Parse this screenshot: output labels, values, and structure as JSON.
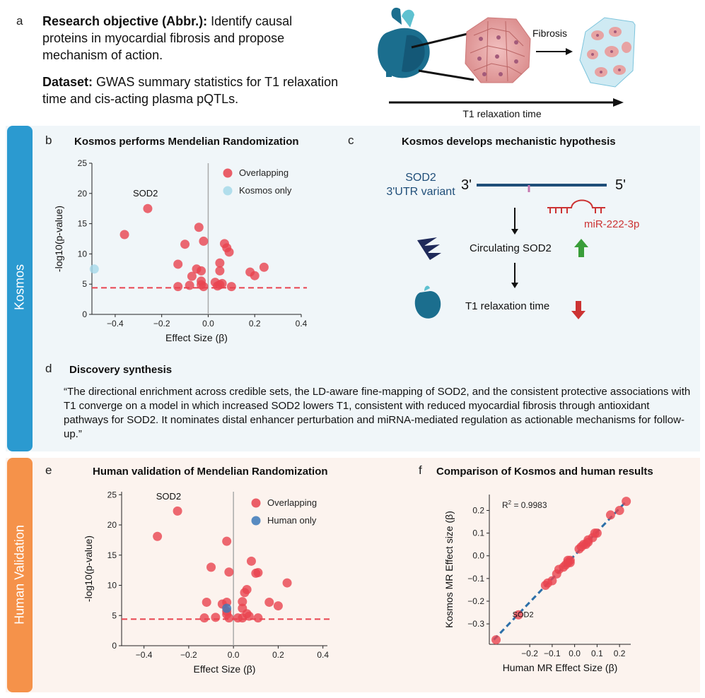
{
  "panel_a": {
    "letter": "a",
    "objective_label": "Research objective (Abbr.):",
    "objective_text": "Identify causal proteins in myocardial fibrosis and propose mechanism of action.",
    "dataset_label": "Dataset:",
    "dataset_text": "GWAS summary statistics for T1 relaxation time and cis-acting plasma pQTLs.",
    "fibrosis_label": "Fibrosis",
    "axis_label": "T1 relaxation time"
  },
  "side_labels": {
    "kosmos": "Kosmos",
    "human": "Human Validation"
  },
  "panel_b": {
    "letter": "b"
  },
  "panel_c": {
    "letter": "c",
    "title": "Kosmos develops mechanistic hypothesis",
    "variant_line1": "SOD2",
    "variant_line2": "3'UTR variant",
    "three_prime": "3'",
    "five_prime": "5'",
    "mirna": "miR-222-3p",
    "circulating": "Circulating SOD2",
    "t1": "T1 relaxation time",
    "colors": {
      "blue": "#1f4e79",
      "red": "#cc3333",
      "green": "#3a9e3a"
    }
  },
  "panel_d": {
    "letter": "d",
    "title": "Discovery synthesis",
    "quote": "“The directional enrichment across credible sets, the LD-aware fine-mapping of SOD2, and the consistent protective associations with T1 converge on a model in which increased SOD2 lowers T1, consistent with reduced myocardial fibrosis through antioxidant pathways for SOD2. It nominates distal enhancer perturbation and miRNA-mediated regulation as actionable mechanisms for follow-up.”"
  },
  "panel_e": {
    "letter": "e"
  },
  "panel_f": {
    "letter": "f"
  },
  "chart_data": [
    {
      "id": "b",
      "type": "scatter",
      "title": "Kosmos performs Mendelian Randomization",
      "xlabel": "Effect Size (β)",
      "ylabel": "-log10(p-value)",
      "xlim": [
        -0.5,
        0.4
      ],
      "ylim": [
        0,
        25
      ],
      "xticks": [
        -0.4,
        -0.2,
        0.0,
        0.2,
        0.4
      ],
      "xtick_labels": [
        "−0.4",
        "−0.2",
        "0.0",
        "0.2",
        "0.4"
      ],
      "yticks": [
        0,
        5,
        10,
        15,
        20,
        25
      ],
      "threshold": 4.4,
      "annotation": {
        "text": "SOD2",
        "x": -0.27,
        "y": 19.5
      },
      "legend": {
        "position": "top-right",
        "entries": [
          "Overlapping",
          "Kosmos only"
        ]
      },
      "series": [
        {
          "name": "Overlapping",
          "color": "#e8434f",
          "points": [
            [
              -0.26,
              17.5
            ],
            [
              -0.36,
              13.2
            ],
            [
              -0.1,
              11.6
            ],
            [
              -0.04,
              14.4
            ],
            [
              -0.02,
              12.1
            ],
            [
              0.07,
              11.7
            ],
            [
              0.09,
              10.3
            ],
            [
              0.08,
              11.0
            ],
            [
              -0.13,
              8.3
            ],
            [
              -0.05,
              7.5
            ],
            [
              -0.07,
              6.3
            ],
            [
              -0.03,
              7.2
            ],
            [
              0.05,
              8.5
            ],
            [
              0.05,
              7.2
            ],
            [
              0.18,
              7.0
            ],
            [
              0.2,
              6.4
            ],
            [
              0.24,
              7.8
            ],
            [
              -0.13,
              4.6
            ],
            [
              -0.08,
              4.8
            ],
            [
              -0.03,
              5.5
            ],
            [
              -0.03,
              4.9
            ],
            [
              -0.02,
              4.6
            ],
            [
              0.03,
              5.3
            ],
            [
              0.05,
              4.9
            ],
            [
              0.04,
              4.7
            ],
            [
              0.1,
              4.6
            ],
            [
              0.06,
              5.1
            ]
          ]
        },
        {
          "name": "Kosmos only",
          "color": "#a6d9ea",
          "points": [
            [
              -0.49,
              7.5
            ]
          ]
        }
      ]
    },
    {
      "id": "e",
      "type": "scatter",
      "title": "Human validation of Mendelian Randomization",
      "xlabel": "Effect Size (β)",
      "ylabel": "-log10(p-value)",
      "xlim": [
        -0.5,
        0.42
      ],
      "ylim": [
        0,
        25.5
      ],
      "xticks": [
        -0.4,
        -0.2,
        0.0,
        0.2,
        0.4
      ],
      "xtick_labels": [
        "−0.4",
        "−0.2",
        "0.0",
        "0.2",
        "0.4"
      ],
      "yticks": [
        0,
        5,
        10,
        15,
        20,
        25
      ],
      "threshold": 4.4,
      "annotation": {
        "text": "SOD2",
        "x": -0.29,
        "y": 24.2
      },
      "legend": {
        "position": "top-right",
        "entries": [
          "Overlapping",
          "Human only"
        ]
      },
      "series": [
        {
          "name": "Overlapping",
          "color": "#e8434f",
          "points": [
            [
              -0.25,
              22.3
            ],
            [
              -0.34,
              18.1
            ],
            [
              -0.03,
              17.3
            ],
            [
              0.08,
              14.0
            ],
            [
              -0.1,
              13.0
            ],
            [
              -0.02,
              12.2
            ],
            [
              0.1,
              12.0
            ],
            [
              0.11,
              12.1
            ],
            [
              0.24,
              10.4
            ],
            [
              0.06,
              9.3
            ],
            [
              0.05,
              8.8
            ],
            [
              -0.12,
              7.2
            ],
            [
              -0.03,
              7.2
            ],
            [
              0.04,
              7.3
            ],
            [
              -0.05,
              6.9
            ],
            [
              0.16,
              7.2
            ],
            [
              0.2,
              6.6
            ],
            [
              0.04,
              6.2
            ],
            [
              -0.13,
              4.6
            ],
            [
              -0.08,
              4.7
            ],
            [
              -0.03,
              5.2
            ],
            [
              -0.02,
              4.6
            ],
            [
              0.02,
              4.6
            ],
            [
              0.04,
              4.6
            ],
            [
              0.06,
              5.3
            ],
            [
              0.07,
              4.9
            ],
            [
              0.11,
              4.6
            ],
            [
              -0.03,
              5.7
            ]
          ]
        },
        {
          "name": "Human only",
          "color": "#3b78b8",
          "points": [
            [
              -0.03,
              6.2
            ]
          ]
        }
      ]
    },
    {
      "id": "f",
      "type": "scatter",
      "title": "Comparison of Kosmos and human results",
      "xlabel": "Human MR Effect Size (β)",
      "ylabel": "Kosmos MR Effect size (β)",
      "xlim": [
        -0.38,
        0.25
      ],
      "ylim": [
        -0.39,
        0.27
      ],
      "xticks": [
        -0.2,
        -0.1,
        0.0,
        0.1,
        0.2
      ],
      "xtick_labels": [
        "−0.2",
        "−0.1",
        "0.0",
        "0.1",
        "0.2"
      ],
      "yticks": [
        -0.3,
        -0.2,
        -0.1,
        0.0,
        0.1,
        0.2
      ],
      "ytick_labels": [
        "−0.3",
        "−0.2",
        "−0.1",
        "0.0",
        "0.1",
        "0.2"
      ],
      "r2_label": "R",
      "r2_sup": "2",
      "r2_value": " = 0.9983",
      "fit_line": {
        "x": [
          -0.36,
          0.23
        ],
        "y": [
          -0.37,
          0.24
        ]
      },
      "annotation": {
        "text": "SOD2",
        "x": -0.23,
        "y": -0.27
      },
      "series": [
        {
          "name": "Overlapping",
          "color": "#e8434f",
          "points": [
            [
              -0.35,
              -0.37
            ],
            [
              -0.25,
              -0.26
            ],
            [
              -0.13,
              -0.13
            ],
            [
              -0.12,
              -0.12
            ],
            [
              -0.1,
              -0.11
            ],
            [
              -0.08,
              -0.08
            ],
            [
              -0.07,
              -0.06
            ],
            [
              -0.05,
              -0.05
            ],
            [
              -0.04,
              -0.04
            ],
            [
              -0.03,
              -0.03
            ],
            [
              -0.03,
              -0.02
            ],
            [
              -0.02,
              -0.02
            ],
            [
              -0.02,
              -0.03
            ],
            [
              0.02,
              0.03
            ],
            [
              0.03,
              0.04
            ],
            [
              0.04,
              0.05
            ],
            [
              0.05,
              0.05
            ],
            [
              0.06,
              0.06
            ],
            [
              0.06,
              0.07
            ],
            [
              0.08,
              0.08
            ],
            [
              0.09,
              0.1
            ],
            [
              0.1,
              0.1
            ],
            [
              0.16,
              0.18
            ],
            [
              0.2,
              0.2
            ],
            [
              0.23,
              0.24
            ]
          ]
        }
      ]
    }
  ]
}
